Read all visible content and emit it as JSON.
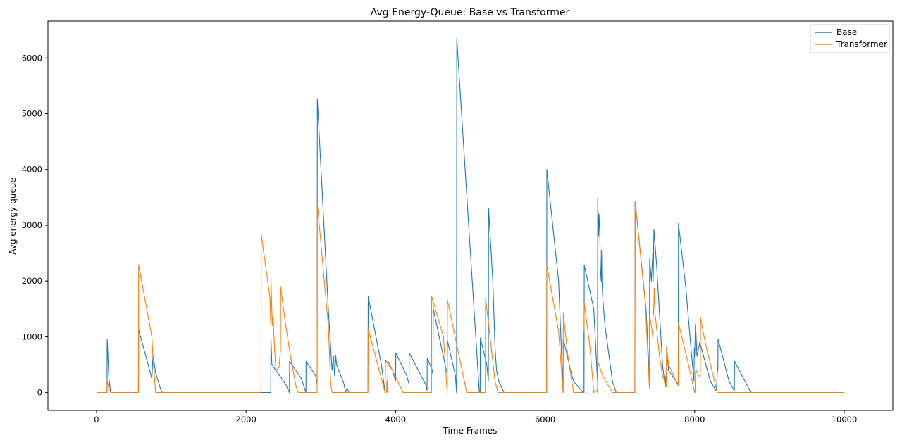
{
  "chart_data": {
    "type": "line",
    "title": "Avg Energy-Queue: Base vs Transformer",
    "xlabel": "Time Frames",
    "ylabel": "Avg energy-queue",
    "xlim": [
      -650,
      10650
    ],
    "ylim": [
      -320,
      6660
    ],
    "xticks": [
      0,
      2000,
      4000,
      6000,
      8000,
      10000
    ],
    "yticks": [
      0,
      1000,
      2000,
      3000,
      4000,
      5000,
      6000
    ],
    "grid": false,
    "legend_position": "top-right",
    "series": [
      {
        "name": "Base",
        "color": "#1f77b4",
        "x": [
          0,
          140,
          143,
          165,
          190,
          560,
          563,
          740,
          755,
          790,
          860,
          880,
          2330,
          2333,
          2345,
          2530,
          2580,
          2583,
          2740,
          2800,
          2803,
          2930,
          2950,
          2953,
          3100,
          3150,
          3170,
          3185,
          3200,
          3210,
          3310,
          3330,
          3350,
          3360,
          3380,
          3630,
          3633,
          3810,
          3840,
          3860,
          3863,
          3960,
          4000,
          4003,
          4150,
          4180,
          4183,
          4400,
          4420,
          4423,
          4490,
          4500,
          4503,
          4670,
          4690,
          4693,
          4800,
          4815,
          4818,
          5120,
          5130,
          5133,
          5220,
          5240,
          5243,
          5300,
          5330,
          5350,
          5380,
          5450,
          6020,
          6023,
          6180,
          6240,
          6243,
          6340,
          6380,
          6510,
          6520,
          6523,
          6650,
          6700,
          6703,
          6715,
          6720,
          6730,
          6740,
          6750,
          6755,
          6760,
          6770,
          6800,
          6900,
          6950,
          7200,
          7203,
          7350,
          7395,
          7398,
          7420,
          7440,
          7445,
          7455,
          7490,
          7570,
          7605,
          7615,
          7620,
          7630,
          7650,
          7780,
          7783,
          7880,
          7950,
          7990,
          7995,
          8000,
          8010,
          8020,
          8030,
          8070,
          8210,
          8290,
          8300,
          8305,
          8310,
          8313,
          8460,
          8530,
          8533,
          8740,
          8760,
          9000,
          10000
        ],
        "y": [
          0,
          0,
          960,
          250,
          0,
          0,
          1130,
          250,
          680,
          350,
          50,
          0,
          0,
          980,
          500,
          150,
          0,
          560,
          250,
          0,
          560,
          300,
          150,
          5270,
          1500,
          400,
          650,
          300,
          660,
          500,
          150,
          0,
          80,
          50,
          0,
          0,
          1720,
          500,
          200,
          0,
          580,
          400,
          200,
          710,
          300,
          150,
          710,
          150,
          40,
          620,
          400,
          320,
          1500,
          450,
          350,
          930,
          300,
          0,
          6350,
          0,
          0,
          980,
          500,
          200,
          3310,
          2000,
          800,
          400,
          200,
          0,
          0,
          4000,
          2000,
          0,
          960,
          400,
          200,
          0,
          0,
          2280,
          1500,
          200,
          3480,
          2800,
          3200,
          2900,
          2200,
          2000,
          2550,
          2000,
          1700,
          1200,
          200,
          0,
          0,
          3430,
          1500,
          250,
          2400,
          2000,
          2500,
          2000,
          2920,
          2300,
          500,
          100,
          300,
          150,
          700,
          400,
          150,
          3030,
          1900,
          800,
          200,
          800,
          650,
          1220,
          1000,
          650,
          900,
          200,
          30,
          300,
          450,
          400,
          960,
          200,
          30,
          560,
          30,
          0,
          0,
          0
        ]
      },
      {
        "name": "Transformer",
        "color": "#ff7f0e",
        "x": [
          0,
          140,
          143,
          165,
          190,
          560,
          563,
          740,
          755,
          780,
          790,
          1000,
          2200,
          2203,
          2320,
          2330,
          2333,
          2350,
          2360,
          2380,
          2400,
          2440,
          2460,
          2463,
          2520,
          2600,
          2670,
          2700,
          2950,
          2953,
          3100,
          3130,
          3150,
          3630,
          3633,
          3860,
          3880,
          3883,
          3890,
          3900,
          4100,
          4480,
          4483,
          4640,
          4690,
          4693,
          4920,
          4950,
          5000,
          5200,
          5203,
          5280,
          5330,
          5370,
          5450,
          6020,
          6023,
          6180,
          6240,
          6243,
          6300,
          6380,
          6510,
          6513,
          6520,
          6523,
          6600,
          6650,
          6690,
          6700,
          6703,
          6770,
          6900,
          7000,
          7200,
          7203,
          7340,
          7390,
          7395,
          7398,
          7430,
          7440,
          7445,
          7450,
          7460,
          7470,
          7480,
          7530,
          7570,
          7600,
          7620,
          7623,
          7650,
          7780,
          7783,
          7900,
          8000,
          8005,
          8010,
          8020,
          8050,
          8075,
          8078,
          8140,
          8300,
          8310,
          8600,
          10000
        ],
        "y": [
          0,
          0,
          220,
          60,
          0,
          0,
          2290,
          1000,
          630,
          200,
          0,
          0,
          0,
          2840,
          1700,
          1230,
          2080,
          1200,
          1380,
          800,
          400,
          450,
          750,
          1890,
          1300,
          600,
          100,
          0,
          0,
          3390,
          1200,
          200,
          0,
          0,
          1140,
          0,
          10,
          200,
          0,
          560,
          0,
          0,
          1720,
          1000,
          0,
          1660,
          200,
          0,
          0,
          0,
          1700,
          800,
          200,
          0,
          0,
          0,
          2280,
          1100,
          0,
          1420,
          700,
          0,
          0,
          1050,
          1100,
          1610,
          800,
          0,
          40,
          0,
          560,
          300,
          0,
          0,
          0,
          3430,
          1600,
          200,
          80,
          1400,
          1100,
          980,
          1500,
          1400,
          1870,
          1400,
          1300,
          650,
          300,
          200,
          100,
          820,
          500,
          120,
          1240,
          600,
          0,
          0,
          380,
          400,
          300,
          300,
          1340,
          900,
          0,
          0,
          0,
          0
        ]
      }
    ]
  }
}
